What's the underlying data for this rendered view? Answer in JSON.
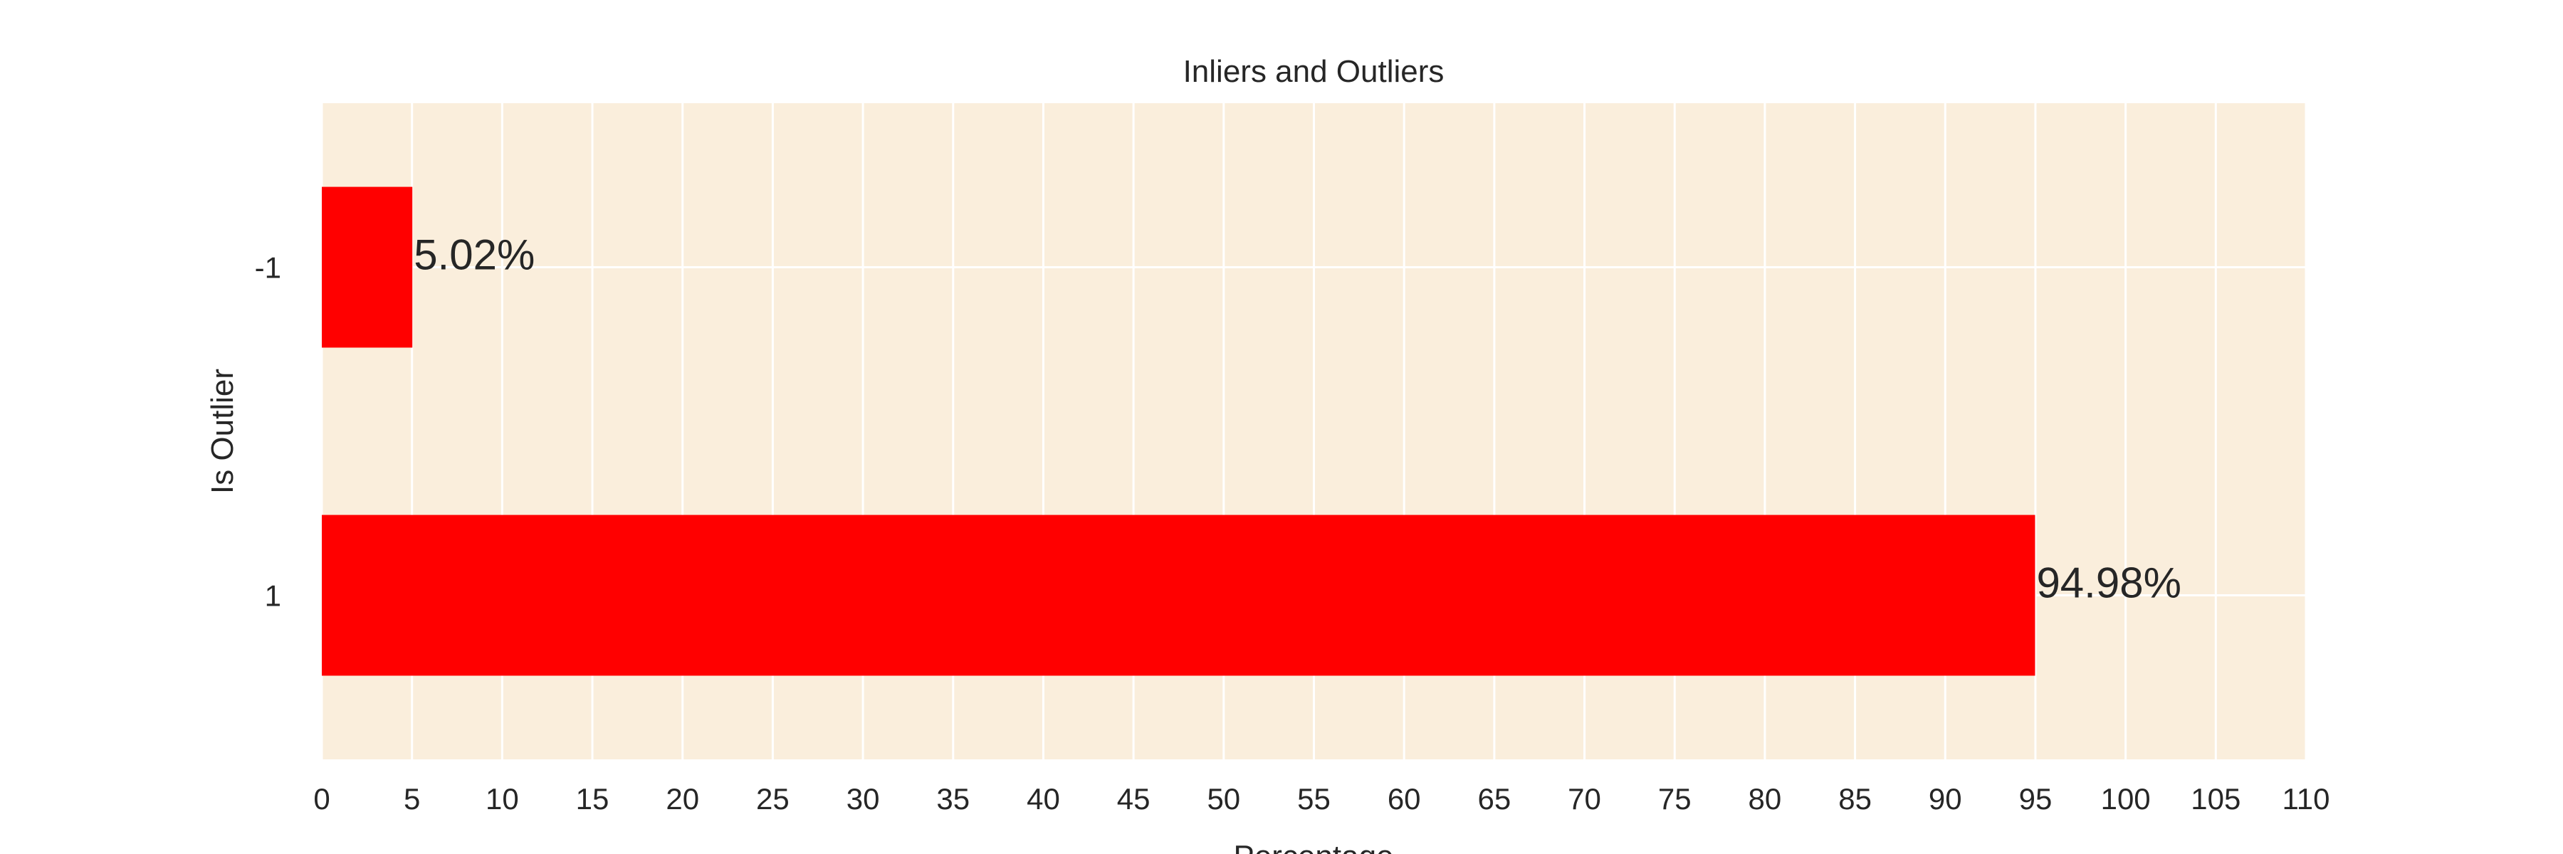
{
  "colors": {
    "plot_background": "#FAEEDC",
    "grid": "#FFFFFF",
    "bar": "#FF0000",
    "text": "#262626"
  },
  "chart_data": {
    "type": "bar",
    "orientation": "horizontal",
    "title": "Inliers and Outliers",
    "xlabel": "Percentage",
    "ylabel": "Is Outlier",
    "categories": [
      "-1",
      "1"
    ],
    "values": [
      5.02,
      94.98
    ],
    "data_labels": [
      "5.02%",
      "94.98%"
    ],
    "xlim": [
      0,
      110
    ],
    "xticks": [
      0,
      5,
      10,
      15,
      20,
      25,
      30,
      35,
      40,
      45,
      50,
      55,
      60,
      65,
      70,
      75,
      80,
      85,
      90,
      95,
      100,
      105,
      110
    ],
    "grid": true,
    "legend": false
  }
}
